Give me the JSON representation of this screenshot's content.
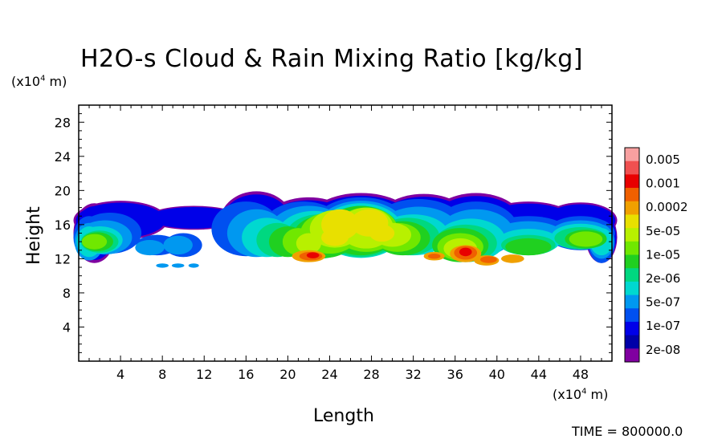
{
  "chart_data": {
    "type": "heatmap",
    "title": "H2O-s Cloud & Rain Mixing Ratio [kg/kg]",
    "xlabel": "Length",
    "ylabel": "Height",
    "x_unit": {
      "prefix": "(x10",
      "exp": "4",
      "suffix": " m)"
    },
    "y_unit": {
      "prefix": "(x10",
      "exp": "4",
      "suffix": " m)"
    },
    "xlim": [
      0,
      51
    ],
    "ylim": [
      0,
      30
    ],
    "x_ticks": [
      4,
      8,
      12,
      16,
      20,
      24,
      28,
      32,
      36,
      40,
      44,
      48
    ],
    "y_ticks": [
      4,
      8,
      12,
      16,
      20,
      24,
      28
    ],
    "colorbar": {
      "levels": [
        "0.005",
        "0.001",
        "0.0002",
        "5e-05",
        "1e-05",
        "2e-06",
        "5e-07",
        "1e-07",
        "2e-08"
      ],
      "colors": [
        "#f8a0a0",
        "#f05050",
        "#e80000",
        "#f06000",
        "#f0a000",
        "#e8e000",
        "#b8f000",
        "#70e800",
        "#20d020",
        "#00d880",
        "#00d8d0",
        "#0098f0",
        "#0050f0",
        "#0000e8",
        "#0000a8",
        "#8000a0"
      ]
    },
    "time_label": "TIME = 800000.0"
  }
}
